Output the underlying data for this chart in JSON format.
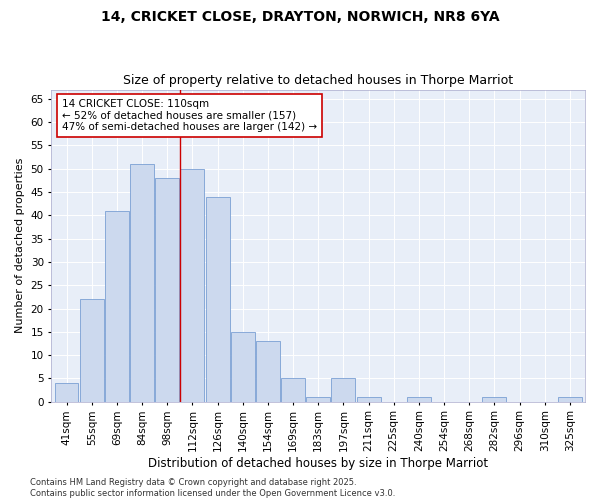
{
  "title1": "14, CRICKET CLOSE, DRAYTON, NORWICH, NR8 6YA",
  "title2": "Size of property relative to detached houses in Thorpe Marriot",
  "xlabel": "Distribution of detached houses by size in Thorpe Marriot",
  "ylabel": "Number of detached properties",
  "categories": [
    "41sqm",
    "55sqm",
    "69sqm",
    "84sqm",
    "98sqm",
    "112sqm",
    "126sqm",
    "140sqm",
    "154sqm",
    "169sqm",
    "183sqm",
    "197sqm",
    "211sqm",
    "225sqm",
    "240sqm",
    "254sqm",
    "268sqm",
    "282sqm",
    "296sqm",
    "310sqm",
    "325sqm"
  ],
  "values": [
    4,
    22,
    41,
    51,
    48,
    50,
    44,
    15,
    13,
    5,
    1,
    5,
    1,
    0,
    1,
    0,
    0,
    1,
    0,
    0,
    1
  ],
  "bar_color": "#ccd9ee",
  "bar_edge_color": "#7a9fd4",
  "vline_x_index": 5,
  "vline_color": "#cc0000",
  "annotation_text": "14 CRICKET CLOSE: 110sqm\n← 52% of detached houses are smaller (157)\n47% of semi-detached houses are larger (142) →",
  "annotation_box_color": "#ffffff",
  "annotation_box_edge": "#cc0000",
  "ylim": [
    0,
    67
  ],
  "yticks": [
    0,
    5,
    10,
    15,
    20,
    25,
    30,
    35,
    40,
    45,
    50,
    55,
    60,
    65
  ],
  "bg_color": "#e8eef8",
  "footer": "Contains HM Land Registry data © Crown copyright and database right 2025.\nContains public sector information licensed under the Open Government Licence v3.0.",
  "title1_fontsize": 10,
  "title2_fontsize": 9,
  "xlabel_fontsize": 8.5,
  "ylabel_fontsize": 8,
  "tick_fontsize": 7.5,
  "annotation_fontsize": 7.5,
  "footer_fontsize": 6
}
